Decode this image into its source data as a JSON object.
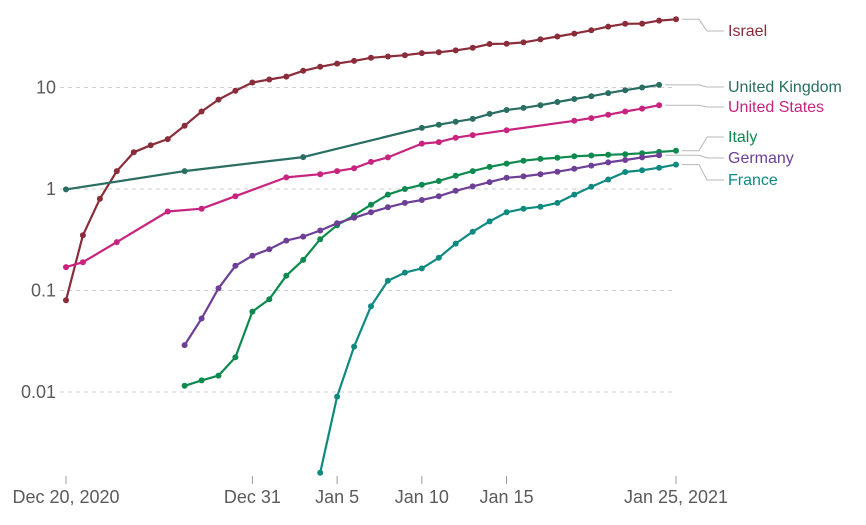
{
  "chart_data": {
    "type": "line",
    "title": "",
    "xlabel": "",
    "ylabel": "",
    "y_scale": "log",
    "ylim": [
      0.0015,
      50
    ],
    "xlim": [
      "2020-12-20",
      "2021-01-25"
    ],
    "grid": "horizontal dashed",
    "legend_placement": "right, end-of-line labels",
    "y_ticks": [
      {
        "value": 0.01,
        "label": "0.01"
      },
      {
        "value": 0.1,
        "label": "0.1"
      },
      {
        "value": 1,
        "label": "1"
      },
      {
        "value": 10,
        "label": "10"
      }
    ],
    "x_ticks": [
      {
        "date": "2020-12-20",
        "label": "Dec 20, 2020"
      },
      {
        "date": "2020-12-31",
        "label": "Dec 31"
      },
      {
        "date": "2021-01-05",
        "label": "Jan 5"
      },
      {
        "date": "2021-01-10",
        "label": "Jan 10"
      },
      {
        "date": "2021-01-15",
        "label": "Jan 15"
      },
      {
        "date": "2021-01-25",
        "label": "Jan 25, 2021"
      }
    ],
    "series": [
      {
        "name": "Israel",
        "color": "#8a2c3a",
        "points": [
          [
            "2020-12-20",
            0.08
          ],
          [
            "2020-12-21",
            0.35
          ],
          [
            "2020-12-22",
            0.8
          ],
          [
            "2020-12-23",
            1.5
          ],
          [
            "2020-12-24",
            2.3
          ],
          [
            "2020-12-25",
            2.7
          ],
          [
            "2020-12-26",
            3.1
          ],
          [
            "2020-12-27",
            4.2
          ],
          [
            "2020-12-28",
            5.8
          ],
          [
            "2020-12-29",
            7.6
          ],
          [
            "2020-12-30",
            9.3
          ],
          [
            "2020-12-31",
            11.2
          ],
          [
            "2021-01-01",
            12.0
          ],
          [
            "2021-01-02",
            12.8
          ],
          [
            "2021-01-03",
            14.6
          ],
          [
            "2021-01-04",
            16.0
          ],
          [
            "2021-01-05",
            17.2
          ],
          [
            "2021-01-06",
            18.3
          ],
          [
            "2021-01-07",
            19.6
          ],
          [
            "2021-01-08",
            20.2
          ],
          [
            "2021-01-09",
            20.8
          ],
          [
            "2021-01-10",
            21.8
          ],
          [
            "2021-01-11",
            22.2
          ],
          [
            "2021-01-12",
            23.2
          ],
          [
            "2021-01-13",
            24.6
          ],
          [
            "2021-01-14",
            26.8
          ],
          [
            "2021-01-15",
            27.0
          ],
          [
            "2021-01-16",
            27.8
          ],
          [
            "2021-01-17",
            29.8
          ],
          [
            "2021-01-18",
            31.8
          ],
          [
            "2021-01-19",
            34.0
          ],
          [
            "2021-01-20",
            36.6
          ],
          [
            "2021-01-21",
            39.8
          ],
          [
            "2021-01-22",
            42.4
          ],
          [
            "2021-01-23",
            42.6
          ],
          [
            "2021-01-24",
            45.6
          ],
          [
            "2021-01-25",
            47.0
          ]
        ]
      },
      {
        "name": "United Kingdom",
        "color": "#2a6e63",
        "points": [
          [
            "2020-12-20",
            0.99
          ],
          [
            "2020-12-27",
            1.5
          ],
          [
            "2021-01-03",
            2.06
          ],
          [
            "2021-01-10",
            4.0
          ],
          [
            "2021-01-11",
            4.3
          ],
          [
            "2021-01-12",
            4.6
          ],
          [
            "2021-01-13",
            4.9
          ],
          [
            "2021-01-14",
            5.5
          ],
          [
            "2021-01-15",
            6.0
          ],
          [
            "2021-01-16",
            6.3
          ],
          [
            "2021-01-17",
            6.7
          ],
          [
            "2021-01-18",
            7.2
          ],
          [
            "2021-01-19",
            7.7
          ],
          [
            "2021-01-20",
            8.2
          ],
          [
            "2021-01-21",
            8.8
          ],
          [
            "2021-01-22",
            9.4
          ],
          [
            "2021-01-23",
            10.0
          ],
          [
            "2021-01-24",
            10.6
          ]
        ]
      },
      {
        "name": "United States",
        "color": "#c8237f",
        "points": [
          [
            "2020-12-20",
            0.17
          ],
          [
            "2020-12-21",
            0.19
          ],
          [
            "2020-12-23",
            0.3
          ],
          [
            "2020-12-26",
            0.6
          ],
          [
            "2020-12-28",
            0.64
          ],
          [
            "2020-12-30",
            0.85
          ],
          [
            "2021-01-02",
            1.3
          ],
          [
            "2021-01-04",
            1.4
          ],
          [
            "2021-01-05",
            1.5
          ],
          [
            "2021-01-06",
            1.6
          ],
          [
            "2021-01-07",
            1.85
          ],
          [
            "2021-01-08",
            2.05
          ],
          [
            "2021-01-10",
            2.8
          ],
          [
            "2021-01-11",
            2.9
          ],
          [
            "2021-01-12",
            3.2
          ],
          [
            "2021-01-13",
            3.4
          ],
          [
            "2021-01-15",
            3.8
          ],
          [
            "2021-01-19",
            4.7
          ],
          [
            "2021-01-20",
            5.0
          ],
          [
            "2021-01-21",
            5.4
          ],
          [
            "2021-01-22",
            5.8
          ],
          [
            "2021-01-23",
            6.2
          ],
          [
            "2021-01-24",
            6.7
          ]
        ]
      },
      {
        "name": "Italy",
        "color": "#0e8a4e",
        "points": [
          [
            "2020-12-27",
            0.0115
          ],
          [
            "2020-12-28",
            0.013
          ],
          [
            "2020-12-29",
            0.0145
          ],
          [
            "2020-12-30",
            0.022
          ],
          [
            "2020-12-31",
            0.062
          ],
          [
            "2021-01-01",
            0.082
          ],
          [
            "2021-01-02",
            0.14
          ],
          [
            "2021-01-03",
            0.2
          ],
          [
            "2021-01-04",
            0.32
          ],
          [
            "2021-01-05",
            0.44
          ],
          [
            "2021-01-06",
            0.55
          ],
          [
            "2021-01-07",
            0.7
          ],
          [
            "2021-01-08",
            0.88
          ],
          [
            "2021-01-09",
            1.0
          ],
          [
            "2021-01-10",
            1.1
          ],
          [
            "2021-01-11",
            1.2
          ],
          [
            "2021-01-12",
            1.35
          ],
          [
            "2021-01-13",
            1.5
          ],
          [
            "2021-01-14",
            1.65
          ],
          [
            "2021-01-15",
            1.78
          ],
          [
            "2021-01-16",
            1.9
          ],
          [
            "2021-01-17",
            1.98
          ],
          [
            "2021-01-18",
            2.03
          ],
          [
            "2021-01-19",
            2.1
          ],
          [
            "2021-01-20",
            2.14
          ],
          [
            "2021-01-21",
            2.17
          ],
          [
            "2021-01-22",
            2.2
          ],
          [
            "2021-01-23",
            2.25
          ],
          [
            "2021-01-24",
            2.32
          ],
          [
            "2021-01-25",
            2.38
          ]
        ]
      },
      {
        "name": "Germany",
        "color": "#6e3f97",
        "points": [
          [
            "2020-12-27",
            0.029
          ],
          [
            "2020-12-28",
            0.053
          ],
          [
            "2020-12-29",
            0.105
          ],
          [
            "2020-12-30",
            0.175
          ],
          [
            "2020-12-31",
            0.22
          ],
          [
            "2021-01-01",
            0.255
          ],
          [
            "2021-01-02",
            0.31
          ],
          [
            "2021-01-03",
            0.34
          ],
          [
            "2021-01-04",
            0.39
          ],
          [
            "2021-01-05",
            0.46
          ],
          [
            "2021-01-06",
            0.52
          ],
          [
            "2021-01-07",
            0.59
          ],
          [
            "2021-01-08",
            0.66
          ],
          [
            "2021-01-09",
            0.73
          ],
          [
            "2021-01-10",
            0.78
          ],
          [
            "2021-01-11",
            0.85
          ],
          [
            "2021-01-12",
            0.96
          ],
          [
            "2021-01-13",
            1.06
          ],
          [
            "2021-01-14",
            1.17
          ],
          [
            "2021-01-15",
            1.29
          ],
          [
            "2021-01-16",
            1.33
          ],
          [
            "2021-01-17",
            1.4
          ],
          [
            "2021-01-18",
            1.48
          ],
          [
            "2021-01-19",
            1.58
          ],
          [
            "2021-01-20",
            1.7
          ],
          [
            "2021-01-21",
            1.83
          ],
          [
            "2021-01-22",
            1.93
          ],
          [
            "2021-01-23",
            2.05
          ],
          [
            "2021-01-24",
            2.15
          ]
        ]
      },
      {
        "name": "France",
        "color": "#0f8a80",
        "points": [
          [
            "2021-01-04",
            0.0016
          ],
          [
            "2021-01-05",
            0.009
          ],
          [
            "2021-01-06",
            0.028
          ],
          [
            "2021-01-07",
            0.07
          ],
          [
            "2021-01-08",
            0.125
          ],
          [
            "2021-01-09",
            0.15
          ],
          [
            "2021-01-10",
            0.165
          ],
          [
            "2021-01-11",
            0.21
          ],
          [
            "2021-01-12",
            0.29
          ],
          [
            "2021-01-13",
            0.38
          ],
          [
            "2021-01-14",
            0.48
          ],
          [
            "2021-01-15",
            0.59
          ],
          [
            "2021-01-16",
            0.64
          ],
          [
            "2021-01-17",
            0.67
          ],
          [
            "2021-01-18",
            0.73
          ],
          [
            "2021-01-19",
            0.88
          ],
          [
            "2021-01-20",
            1.05
          ],
          [
            "2021-01-21",
            1.24
          ],
          [
            "2021-01-22",
            1.47
          ],
          [
            "2021-01-23",
            1.53
          ],
          [
            "2021-01-24",
            1.62
          ],
          [
            "2021-01-25",
            1.74
          ]
        ]
      }
    ]
  }
}
